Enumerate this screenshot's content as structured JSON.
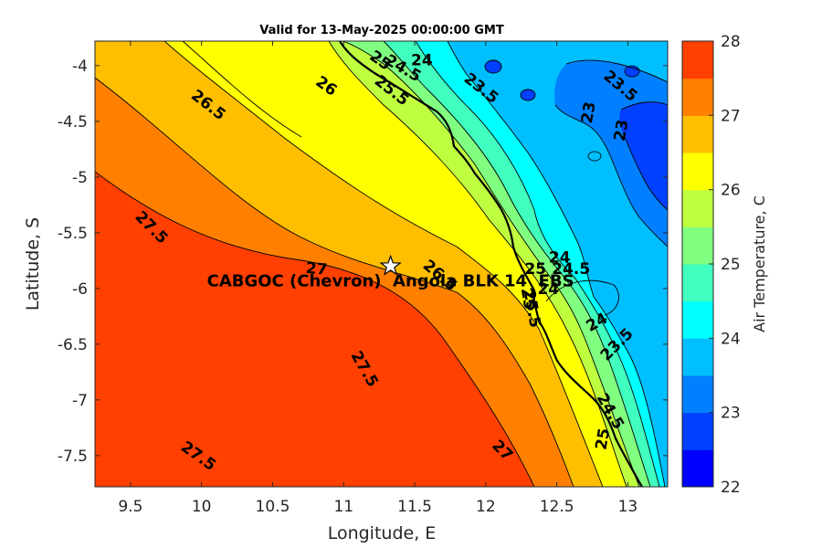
{
  "title": "Valid for 13-May-2025 00:00:00 GMT",
  "chart_data": {
    "type": "heatmap",
    "xlabel": "Longitude, E",
    "ylabel": "Latitude, S",
    "xlim": [
      9.25,
      13.28
    ],
    "ylim": [
      -7.78,
      -3.78
    ],
    "x_ticks": [
      9.5,
      10,
      10.5,
      11,
      11.5,
      12,
      12.5,
      13
    ],
    "x_tick_labels": [
      "9.5",
      "10",
      "10.5",
      "11",
      "11.5",
      "12",
      "12.5",
      "13"
    ],
    "y_ticks": [
      -4,
      -4.5,
      -5,
      -5.5,
      -6,
      -6.5,
      -7,
      -7.5
    ],
    "y_tick_labels": [
      "-4",
      "-4.5",
      "-5",
      "-5.5",
      "-6",
      "-6.5",
      "-7",
      "-7.5"
    ],
    "colorbar": {
      "label": "Air Temperature, C",
      "range": [
        22,
        28
      ],
      "step": 0.5,
      "ticks": [
        22,
        23,
        24,
        25,
        26,
        27,
        28
      ],
      "tick_labels": [
        "22",
        "23",
        "24",
        "25",
        "26",
        "27",
        "28"
      ],
      "colors": [
        "#0000ff",
        "#0040ff",
        "#0080ff",
        "#00bfff",
        "#00ffff",
        "#40ffbf",
        "#80ff80",
        "#bfff40",
        "#ffff00",
        "#ffbf00",
        "#ff8000",
        "#ff4000"
      ]
    },
    "contour_labels": [
      {
        "text": "26.5",
        "lon": 10.05,
        "lat": -4.35,
        "angle": 38
      },
      {
        "text": "26",
        "lon": 10.88,
        "lat": -4.18,
        "angle": 35
      },
      {
        "text": "25",
        "lon": 11.26,
        "lat": -3.95,
        "angle": 35
      },
      {
        "text": "24.5",
        "lon": 11.42,
        "lat": -4.02,
        "angle": 30
      },
      {
        "text": "24",
        "lon": 11.55,
        "lat": -3.95,
        "angle": 0
      },
      {
        "text": "25.5",
        "lon": 11.34,
        "lat": -4.22,
        "angle": 38
      },
      {
        "text": "23.5",
        "lon": 11.97,
        "lat": -4.2,
        "angle": 38
      },
      {
        "text": "23.5",
        "lon": 12.95,
        "lat": -4.18,
        "angle": 40
      },
      {
        "text": "23",
        "lon": 12.72,
        "lat": -4.42,
        "angle": -80
      },
      {
        "text": "23",
        "lon": 12.95,
        "lat": -4.58,
        "angle": -80
      },
      {
        "text": "27.5",
        "lon": 9.65,
        "lat": -5.45,
        "angle": 45
      },
      {
        "text": "27",
        "lon": 10.81,
        "lat": -5.82,
        "angle": 5
      },
      {
        "text": "26.5",
        "lon": 11.68,
        "lat": -5.88,
        "angle": 40
      },
      {
        "text": "24",
        "lon": 12.52,
        "lat": -5.72,
        "angle": 0
      },
      {
        "text": "24.5",
        "lon": 12.6,
        "lat": -5.82,
        "angle": 0
      },
      {
        "text": "25",
        "lon": 12.35,
        "lat": -5.82,
        "angle": 0
      },
      {
        "text": "24",
        "lon": 12.44,
        "lat": -6.0,
        "angle": 0
      },
      {
        "text": "25",
        "lon": 12.3,
        "lat": -6.09,
        "angle": 80
      },
      {
        "text": "25.5",
        "lon": 12.33,
        "lat": -6.18,
        "angle": 80
      },
      {
        "text": "24",
        "lon": 12.78,
        "lat": -6.3,
        "angle": -30
      },
      {
        "text": "23.5",
        "lon": 12.92,
        "lat": -6.5,
        "angle": -45
      },
      {
        "text": "27.5",
        "lon": 11.15,
        "lat": -6.72,
        "angle": 60
      },
      {
        "text": "24.5",
        "lon": 12.88,
        "lat": -7.1,
        "angle": 60
      },
      {
        "text": "25",
        "lon": 12.82,
        "lat": -7.35,
        "angle": -80
      },
      {
        "text": "27",
        "lon": 12.12,
        "lat": -7.45,
        "angle": 45
      },
      {
        "text": "27.5",
        "lon": 9.98,
        "lat": -7.5,
        "angle": 35
      }
    ],
    "site": {
      "name": "CABGOC (Chevron)  Angola BLK 14  EBS",
      "lon": 11.33,
      "lat": -5.8,
      "marker": "star"
    }
  }
}
